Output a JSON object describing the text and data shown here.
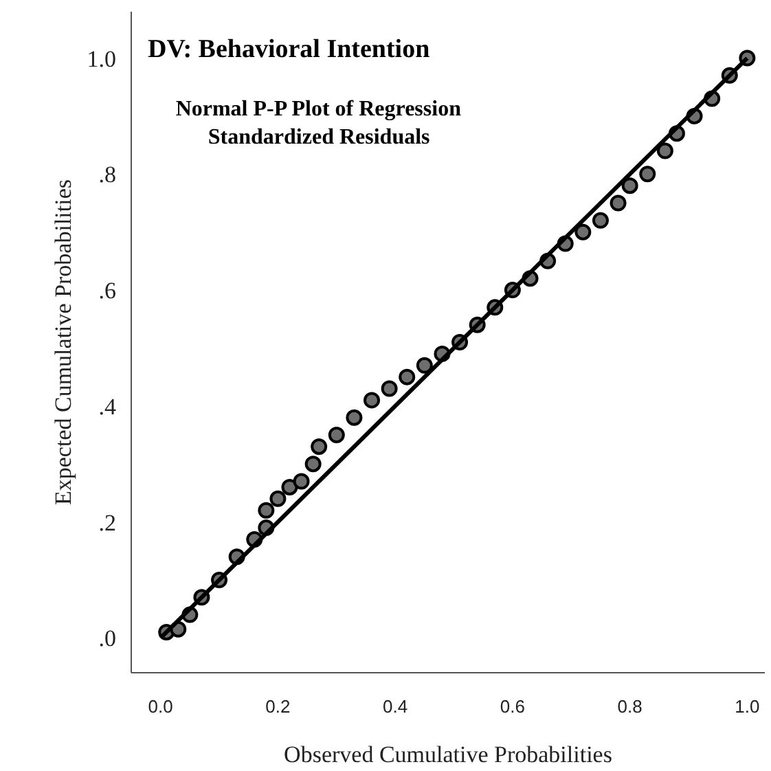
{
  "chart_data": {
    "type": "scatter",
    "title": "DV: Behavioral Intention",
    "subtitle": "Normal P-P Plot of Regression\nStandardized Residuals",
    "xlabel": "Observed Cumulative Probabilities",
    "ylabel": "Expected Cumulative Probabilities",
    "xlim": [
      -0.05,
      1.03
    ],
    "ylim": [
      -0.06,
      1.08
    ],
    "xticks": [
      {
        "value": 0,
        "label": "0.0"
      },
      0.2,
      0.4,
      0.6,
      0.8,
      {
        "value": 1,
        "label": "1.0"
      }
    ],
    "yticks": [
      {
        "value": 0,
        "label": ".0"
      },
      {
        "value": 0.2,
        "label": ".2"
      },
      {
        "value": 0.4,
        "label": ".4"
      },
      {
        "value": 0.6,
        "label": ".6"
      },
      {
        "value": 0.8,
        "label": ".8"
      },
      {
        "value": 1,
        "label": "1.0"
      }
    ],
    "grid": false,
    "series": [
      {
        "marker": "circle",
        "color": "#6e6e6e",
        "x": [
          0.01,
          0.03,
          0.05,
          0.07,
          0.1,
          0.13,
          0.16,
          0.18,
          0.18,
          0.2,
          0.22,
          0.24,
          0.26,
          0.27,
          0.3,
          0.33,
          0.36,
          0.39,
          0.42,
          0.45,
          0.48,
          0.51,
          0.54,
          0.57,
          0.6,
          0.63,
          0.66,
          0.69,
          0.72,
          0.75,
          0.78,
          0.8,
          0.83,
          0.86,
          0.88,
          0.91,
          0.94,
          0.97,
          1.0
        ],
        "values": [
          0.01,
          0.015,
          0.04,
          0.07,
          0.1,
          0.14,
          0.17,
          0.19,
          0.22,
          0.24,
          0.26,
          0.27,
          0.3,
          0.33,
          0.35,
          0.38,
          0.41,
          0.43,
          0.45,
          0.47,
          0.49,
          0.51,
          0.54,
          0.57,
          0.6,
          0.62,
          0.65,
          0.68,
          0.7,
          0.72,
          0.75,
          0.78,
          0.8,
          0.84,
          0.87,
          0.9,
          0.93,
          0.97,
          1.0
        ]
      },
      {
        "type": "line",
        "color": "#000000",
        "x": [
          0,
          1
        ],
        "values": [
          0,
          1
        ]
      }
    ]
  }
}
